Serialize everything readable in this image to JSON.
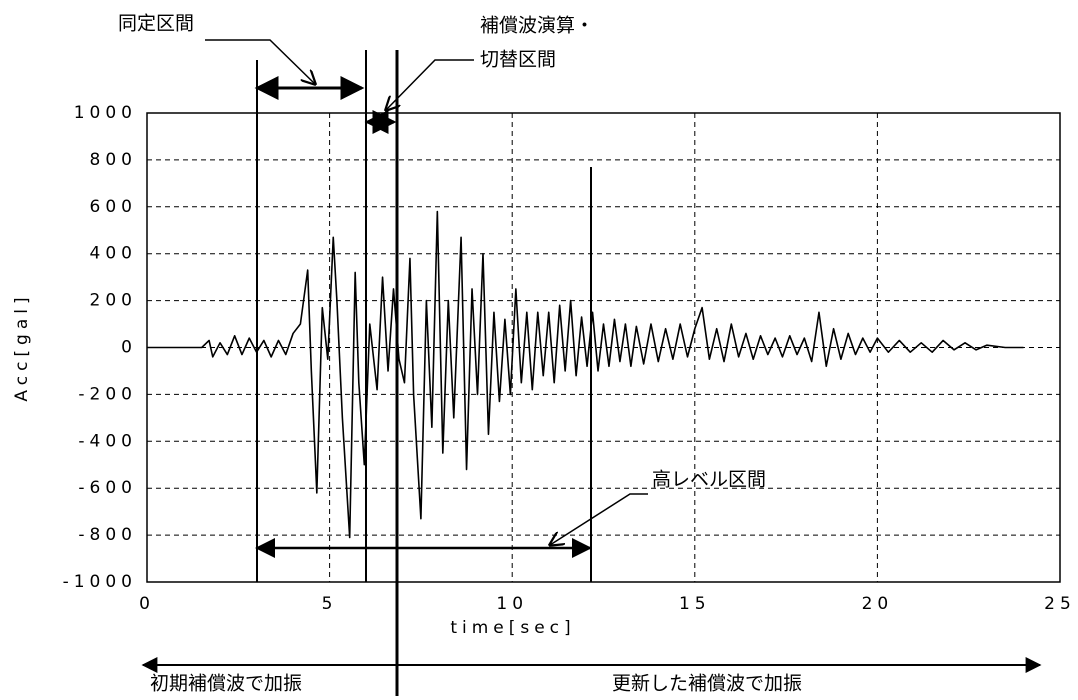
{
  "chart_data": {
    "type": "line",
    "y_label": "Acc[gal]",
    "x_label": "time[sec]",
    "xlim": [
      0,
      25
    ],
    "xticks": [
      0,
      5,
      10,
      15,
      20,
      25
    ],
    "ylim": [
      -1000,
      1000
    ],
    "yticks": [
      -1000,
      -800,
      -600,
      -400,
      -200,
      0,
      200,
      400,
      600,
      800,
      1000
    ],
    "grid": true,
    "series": [
      {
        "color": "#000000",
        "x": [
          0,
          1.5,
          1.7,
          1.8,
          2.0,
          2.2,
          2.4,
          2.6,
          2.8,
          3.0,
          3.2,
          3.4,
          3.6,
          3.8,
          4.0,
          4.2,
          4.4,
          4.5,
          4.65,
          4.8,
          4.95,
          5.1,
          5.2,
          5.35,
          5.55,
          5.7,
          5.8,
          5.95,
          6.1,
          6.3,
          6.45,
          6.6,
          6.75,
          6.9,
          7.05,
          7.2,
          7.3,
          7.5,
          7.65,
          7.8,
          7.95,
          8.1,
          8.25,
          8.4,
          8.6,
          8.75,
          8.9,
          9.05,
          9.2,
          9.35,
          9.5,
          9.65,
          9.8,
          9.95,
          10.1,
          10.25,
          10.4,
          10.55,
          10.7,
          10.85,
          11.0,
          11.15,
          11.3,
          11.45,
          11.6,
          11.75,
          11.9,
          12.05,
          12.2,
          12.35,
          12.5,
          12.65,
          12.8,
          12.95,
          13.1,
          13.25,
          13.4,
          13.6,
          13.8,
          14.0,
          14.2,
          14.4,
          14.6,
          14.8,
          15.0,
          15.2,
          15.4,
          15.6,
          15.8,
          16.0,
          16.2,
          16.4,
          16.6,
          16.8,
          17.0,
          17.2,
          17.4,
          17.6,
          17.8,
          18.0,
          18.2,
          18.4,
          18.6,
          18.8,
          19.0,
          19.2,
          19.4,
          19.6,
          19.8,
          20.0,
          20.3,
          20.6,
          20.9,
          21.2,
          21.5,
          21.8,
          22.1,
          22.4,
          22.7,
          23.0,
          23.5,
          24.0
        ],
        "values": [
          0,
          0,
          30,
          -40,
          20,
          -30,
          50,
          -30,
          40,
          -20,
          30,
          -40,
          30,
          -30,
          60,
          100,
          330,
          -100,
          -620,
          170,
          -50,
          470,
          200,
          -300,
          -810,
          320,
          -150,
          -500,
          100,
          -180,
          300,
          -100,
          250,
          -50,
          -150,
          380,
          -200,
          -730,
          200,
          -340,
          580,
          -450,
          200,
          -300,
          470,
          -520,
          250,
          -200,
          400,
          -370,
          150,
          -230,
          120,
          -200,
          250,
          -150,
          150,
          -180,
          150,
          -120,
          150,
          -150,
          180,
          -100,
          200,
          -120,
          130,
          -80,
          150,
          -100,
          100,
          -80,
          120,
          -60,
          100,
          -80,
          90,
          -70,
          100,
          -60,
          80,
          -50,
          100,
          -40,
          80,
          170,
          -50,
          80,
          -60,
          100,
          -40,
          60,
          -50,
          50,
          -30,
          40,
          -40,
          50,
          -30,
          40,
          -60,
          150,
          -80,
          80,
          -50,
          60,
          -30,
          40,
          -20,
          40,
          -20,
          30,
          -20,
          20,
          -20,
          30,
          -10,
          20,
          -10,
          10,
          0,
          0
        ]
      }
    ]
  },
  "annotations": {
    "identification": "同定区間",
    "switch_line1": "補償波演算・",
    "switch_line2": "切替区間",
    "high_level": "高レベル区間",
    "initial": "初期補償波で加振",
    "updated": "更新した補償波で加振"
  }
}
